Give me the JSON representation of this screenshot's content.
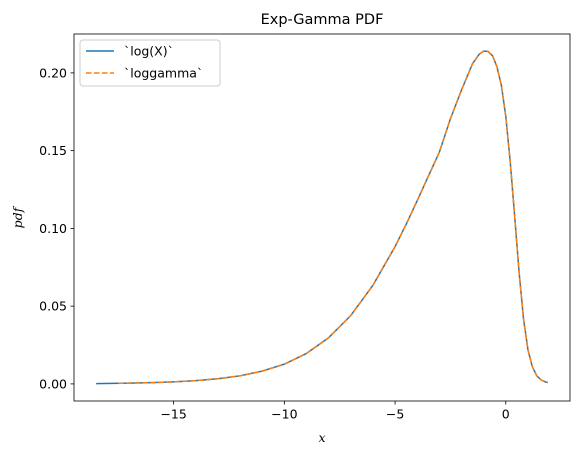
{
  "chart_data": {
    "type": "line",
    "title": "Exp-Gamma PDF",
    "xlabel": "x",
    "ylabel": "pdf",
    "xlim": [
      -19.5,
      2.9
    ],
    "ylim": [
      -0.011,
      0.225
    ],
    "xticks": [
      {
        "value": -15,
        "label": "−15"
      },
      {
        "value": -10,
        "label": "−10"
      },
      {
        "value": -5,
        "label": "−5"
      },
      {
        "value": 0,
        "label": "0"
      }
    ],
    "yticks": [
      {
        "value": 0.0,
        "label": "0.00"
      },
      {
        "value": 0.05,
        "label": "0.05"
      },
      {
        "value": 0.1,
        "label": "0.10"
      },
      {
        "value": 0.15,
        "label": "0.15"
      },
      {
        "value": 0.2,
        "label": "0.20"
      }
    ],
    "grid": false,
    "legend_position": "top-left",
    "series": [
      {
        "name": "`log(X)`",
        "color": "#1f77b4",
        "style": "solid",
        "x": [
          -18.5,
          -17.0,
          -16.0,
          -15.0,
          -14.0,
          -13.0,
          -12.0,
          -11.0,
          -10.0,
          -9.0,
          -8.0,
          -7.0,
          -6.0,
          -5.0,
          -4.5,
          -4.0,
          -3.5,
          -3.0,
          -2.5,
          -2.0,
          -1.5,
          -1.2,
          -1.0,
          -0.8,
          -0.6,
          -0.4,
          -0.2,
          0.0,
          0.2,
          0.4,
          0.6,
          0.8,
          1.0,
          1.2,
          1.4,
          1.6,
          1.8,
          1.9
        ],
        "y": [
          0.0002,
          0.0005,
          0.0008,
          0.0013,
          0.0021,
          0.0033,
          0.0052,
          0.0082,
          0.0127,
          0.0196,
          0.0297,
          0.044,
          0.0634,
          0.0883,
          0.1026,
          0.1178,
          0.1335,
          0.149,
          0.1705,
          0.189,
          0.206,
          0.212,
          0.214,
          0.2138,
          0.211,
          0.204,
          0.192,
          0.172,
          0.143,
          0.108,
          0.072,
          0.042,
          0.022,
          0.011,
          0.0052,
          0.0025,
          0.0012,
          0.0009
        ]
      },
      {
        "name": "`loggamma`",
        "color": "#ff7f0e",
        "style": "dashed",
        "x": [
          -17.5,
          -17.0,
          -16.0,
          -15.0,
          -14.0,
          -13.0,
          -12.0,
          -11.0,
          -10.0,
          -9.0,
          -8.0,
          -7.0,
          -6.0,
          -5.0,
          -4.5,
          -4.0,
          -3.5,
          -3.0,
          -2.5,
          -2.0,
          -1.5,
          -1.2,
          -1.0,
          -0.8,
          -0.6,
          -0.4,
          -0.2,
          0.0,
          0.2,
          0.4,
          0.6,
          0.8,
          1.0,
          1.2,
          1.4,
          1.6,
          1.8,
          1.9
        ],
        "y": [
          0.0003,
          0.0005,
          0.0008,
          0.0013,
          0.0021,
          0.0033,
          0.0052,
          0.0082,
          0.0127,
          0.0196,
          0.0297,
          0.044,
          0.0634,
          0.0883,
          0.1026,
          0.1178,
          0.1335,
          0.149,
          0.1705,
          0.189,
          0.206,
          0.212,
          0.214,
          0.2138,
          0.211,
          0.204,
          0.192,
          0.172,
          0.143,
          0.108,
          0.072,
          0.042,
          0.022,
          0.011,
          0.0052,
          0.0025,
          0.0012,
          0.0009
        ]
      }
    ]
  }
}
